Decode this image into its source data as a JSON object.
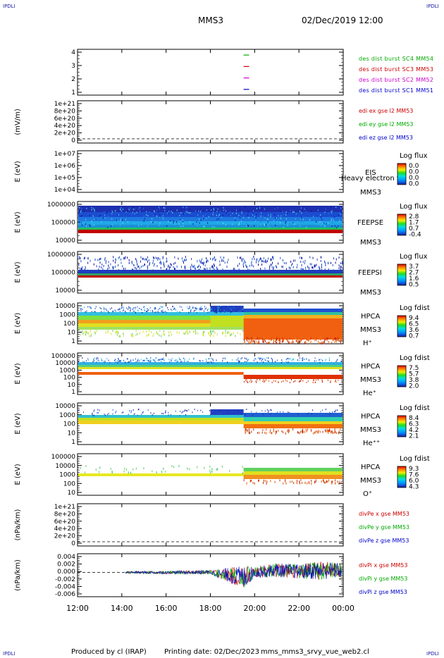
{
  "corners": {
    "top_left": "IPDLI",
    "top_right": "IPDLI",
    "bottom_left": "IPDLI",
    "bottom_right": "IPDLI"
  },
  "header": {
    "spacecraft": "MMS3",
    "datetime": "02/Dec/2019 12:00"
  },
  "footer": {
    "produced_by": "Produced by cl (IRAP)",
    "printing_date": "Printing date: 02/Dec/2023",
    "filename": "mms_mms3_srvy_vue_web2.cl"
  },
  "colors": {
    "bg": "#ffffff",
    "axis": "#000000",
    "blue": "#0000cc",
    "magenta": "#cc00cc",
    "red": "#cc0000",
    "green": "#00aa00"
  },
  "chart_data": [
    {
      "id": "burst",
      "type": "line",
      "y_ticks": [
        "4",
        "3",
        "2",
        "1"
      ],
      "ylim": [
        0.5,
        4.5
      ],
      "series": [
        {
          "name": "des dist burst SC1 MM51",
          "color": "#0000cc",
          "y": 1,
          "x": [
            "19:30",
            "19:45"
          ]
        },
        {
          "name": "des dist burst SC2 MM52",
          "color": "#cc00cc",
          "y": 2,
          "x": [
            "19:30",
            "19:45"
          ]
        },
        {
          "name": "des dist burst SC3 MM53",
          "color": "#cc0000",
          "y": 3,
          "x": [
            "19:30",
            "19:45"
          ]
        },
        {
          "name": "des dist burst SC4 MM54",
          "color": "#00aa00",
          "y": 4,
          "x": [
            "19:30",
            "19:45"
          ]
        }
      ]
    },
    {
      "id": "edi",
      "type": "line",
      "ylabel": "(mV/m)",
      "y_ticks": [
        "1e+21",
        "8e+20",
        "6e+20",
        "4e+20",
        "2e+20",
        "0"
      ],
      "ylim": [
        0,
        1e+21
      ],
      "series": [
        {
          "name": "edi ex gse l2 MM53",
          "color": "#cc0000",
          "values": []
        },
        {
          "name": "edi ey gse l2 MM53",
          "color": "#00aa00",
          "values": []
        },
        {
          "name": "edi ez gse l2 MM53",
          "color": "#0000cc",
          "values": []
        }
      ]
    },
    {
      "id": "eis",
      "type": "heatmap",
      "ylabel": "E (eV)",
      "y_scale": "log",
      "y_ticks": [
        "1e+07",
        "1e+06",
        "1e+05",
        "1e+04"
      ],
      "labels": [
        "EIS",
        "MMS3",
        "Heavy electron to"
      ],
      "colorbar": {
        "title": "Log flux",
        "ticks": [
          "0.0",
          "0.0",
          "0.0",
          "0.0"
        ]
      }
    },
    {
      "id": "feepse",
      "type": "heatmap",
      "ylabel": "E (eV)",
      "y_scale": "log",
      "y_ticks": [
        "1000000",
        "100000",
        "10000"
      ],
      "labels": [
        "FEEPSE",
        "MMS3"
      ],
      "colorbar": {
        "title": "Log flux",
        "ticks": [
          "2.8",
          "1.7",
          "0.7",
          "-0.4"
        ]
      }
    },
    {
      "id": "feepsi",
      "type": "heatmap",
      "ylabel": "E (eV)",
      "y_scale": "log",
      "y_ticks": [
        "1000000",
        "100000",
        "10000"
      ],
      "labels": [
        "FEEPSI",
        "MMS3"
      ],
      "colorbar": {
        "title": "Log flux",
        "ticks": [
          "3.7",
          "2.7",
          "1.6",
          "0.5"
        ]
      }
    },
    {
      "id": "hpca_h",
      "type": "heatmap",
      "ylabel": "E (eV)",
      "y_scale": "log",
      "y_ticks": [
        "10000",
        "1000",
        "100",
        "10",
        "1"
      ],
      "labels": [
        "HPCA",
        "MMS3",
        "H⁺"
      ],
      "colorbar": {
        "title": "Log fdist",
        "ticks": [
          "9.4",
          "6.5",
          "3.6",
          "0.7"
        ]
      }
    },
    {
      "id": "hpca_he",
      "type": "heatmap",
      "ylabel": "E (eV)",
      "y_scale": "log",
      "y_ticks": [
        "100000",
        "10000",
        "1000",
        "100",
        "10",
        "1"
      ],
      "labels": [
        "HPCA",
        "MMS3",
        "He⁺"
      ],
      "colorbar": {
        "title": "Log fdist",
        "ticks": [
          "7.5",
          "5.7",
          "3.8",
          "2.0"
        ]
      }
    },
    {
      "id": "hpca_hepp",
      "type": "heatmap",
      "ylabel": "E (eV)",
      "y_scale": "log",
      "y_ticks": [
        "10000",
        "1000",
        "100",
        "10",
        "1"
      ],
      "labels": [
        "HPCA",
        "MMS3",
        "He⁺⁺"
      ],
      "colorbar": {
        "title": "Log fdist",
        "ticks": [
          "8.4",
          "6.3",
          "4.2",
          "2.1"
        ]
      }
    },
    {
      "id": "hpca_o",
      "type": "heatmap",
      "ylabel": "E (eV)",
      "y_scale": "log",
      "y_ticks": [
        "100000",
        "10000",
        "1000",
        "100",
        "10"
      ],
      "labels": [
        "HPCA",
        "MMS3",
        "O⁺"
      ],
      "colorbar": {
        "title": "Log fdist",
        "ticks": [
          "9.3",
          "7.6",
          "6.0",
          "4.3"
        ]
      }
    },
    {
      "id": "divpe",
      "type": "line",
      "ylabel": "(nPa/km)",
      "y_ticks": [
        "1e+21",
        "8e+20",
        "6e+20",
        "4e+20",
        "2e+20",
        "0"
      ],
      "ylim": [
        0,
        1e+21
      ],
      "series": [
        {
          "name": "divPe x gse MM53",
          "color": "#cc0000",
          "values": []
        },
        {
          "name": "divPe y gse MM53",
          "color": "#00aa00",
          "values": []
        },
        {
          "name": "divPe z gse MM53",
          "color": "#0000cc",
          "values": []
        }
      ]
    },
    {
      "id": "divpi",
      "type": "line",
      "ylabel": "(nPa/km)",
      "y_ticks": [
        "0.004",
        "0.002",
        "0.000",
        "-0.002",
        "-0.004",
        "-0.006"
      ],
      "ylim": [
        -0.0065,
        0.005
      ],
      "series": [
        {
          "name": "divPi x gse MM53",
          "color": "#cc0000"
        },
        {
          "name": "divPi y gse MM53",
          "color": "#00aa00"
        },
        {
          "name": "divPi z gse MM53",
          "color": "#0000cc"
        }
      ],
      "data_start": "14:10",
      "envelope": [
        {
          "t": "14:10",
          "lo": -0.0003,
          "hi": 0.0003
        },
        {
          "t": "16:00",
          "lo": -0.0004,
          "hi": 0.0004
        },
        {
          "t": "18:00",
          "lo": -0.0005,
          "hi": 0.0006
        },
        {
          "t": "19:30",
          "lo": -0.0045,
          "hi": 0.0018
        },
        {
          "t": "20:00",
          "lo": -0.0015,
          "hi": 0.0015
        },
        {
          "t": "21:00",
          "lo": -0.0012,
          "hi": 0.0025
        },
        {
          "t": "22:00",
          "lo": -0.0017,
          "hi": 0.0022
        },
        {
          "t": "23:00",
          "lo": -0.002,
          "hi": 0.003
        },
        {
          "t": "24:00",
          "lo": -0.0015,
          "hi": 0.0025
        }
      ]
    }
  ],
  "time_axis": {
    "ticks": [
      "12:00",
      "14:00",
      "16:00",
      "18:00",
      "20:00",
      "22:00",
      "00:00"
    ]
  }
}
